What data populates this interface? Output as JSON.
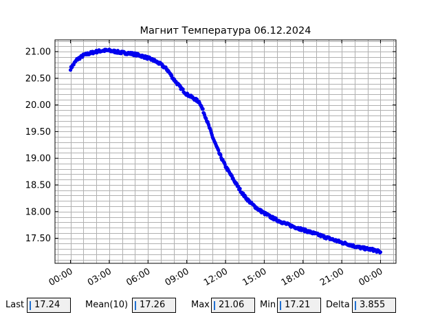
{
  "chart_data": {
    "type": "scatter",
    "title": "Магнит Температура 06.12.2024",
    "xlabel": "",
    "ylabel": "",
    "x_tick_labels": [
      "00:00",
      "03:00",
      "06:00",
      "09:00",
      "12:00",
      "15:00",
      "18:00",
      "21:00",
      "00:00"
    ],
    "x_ticks_hours": [
      0,
      3,
      6,
      9,
      12,
      15,
      18,
      21,
      24
    ],
    "xlim_hours": [
      -1.2,
      25.2
    ],
    "y_tick_labels": [
      "17.50",
      "18.00",
      "18.50",
      "19.00",
      "19.50",
      "20.00",
      "20.50",
      "21.00"
    ],
    "y_ticks": [
      17.5,
      18.0,
      18.5,
      19.0,
      19.5,
      20.0,
      20.5,
      21.0
    ],
    "ylim": [
      17.03,
      21.22
    ],
    "grid": true,
    "marker_color": "#0000ee",
    "series": [
      {
        "x_hours": [
          0.0,
          0.5,
          1.0,
          1.5,
          2.0,
          2.5,
          3.0,
          3.5,
          4.0,
          4.5,
          5.0,
          5.5,
          6.0,
          6.5,
          7.0,
          7.5,
          8.0,
          8.5,
          9.0,
          9.5,
          10.0,
          10.5,
          11.0,
          11.5,
          12.0,
          12.5,
          13.0,
          13.5,
          14.0,
          14.5,
          15.0,
          15.5,
          16.0,
          16.5,
          17.0,
          17.5,
          18.0,
          18.5,
          19.0,
          19.5,
          20.0,
          20.5,
          21.0,
          21.5,
          22.0,
          22.5,
          23.0,
          23.5,
          24.0
        ],
        "y": [
          20.68,
          20.85,
          20.93,
          20.97,
          21.0,
          21.02,
          21.02,
          21.0,
          20.98,
          20.97,
          20.95,
          20.92,
          20.88,
          20.83,
          20.76,
          20.66,
          20.48,
          20.33,
          20.2,
          20.13,
          20.05,
          19.75,
          19.4,
          19.1,
          18.85,
          18.65,
          18.45,
          18.28,
          18.15,
          18.05,
          17.97,
          17.9,
          17.84,
          17.79,
          17.74,
          17.7,
          17.66,
          17.62,
          17.58,
          17.54,
          17.5,
          17.46,
          17.42,
          17.39,
          17.35,
          17.32,
          17.3,
          17.28,
          17.24
        ]
      }
    ]
  },
  "stats": [
    {
      "label": "Last",
      "value": "17.24"
    },
    {
      "label": "Mean(10)",
      "value": "17.26"
    },
    {
      "label": "Max",
      "value": "21.06"
    },
    {
      "label": "Min",
      "value": "17.21"
    },
    {
      "label": "Delta",
      "value": "3.855"
    }
  ]
}
